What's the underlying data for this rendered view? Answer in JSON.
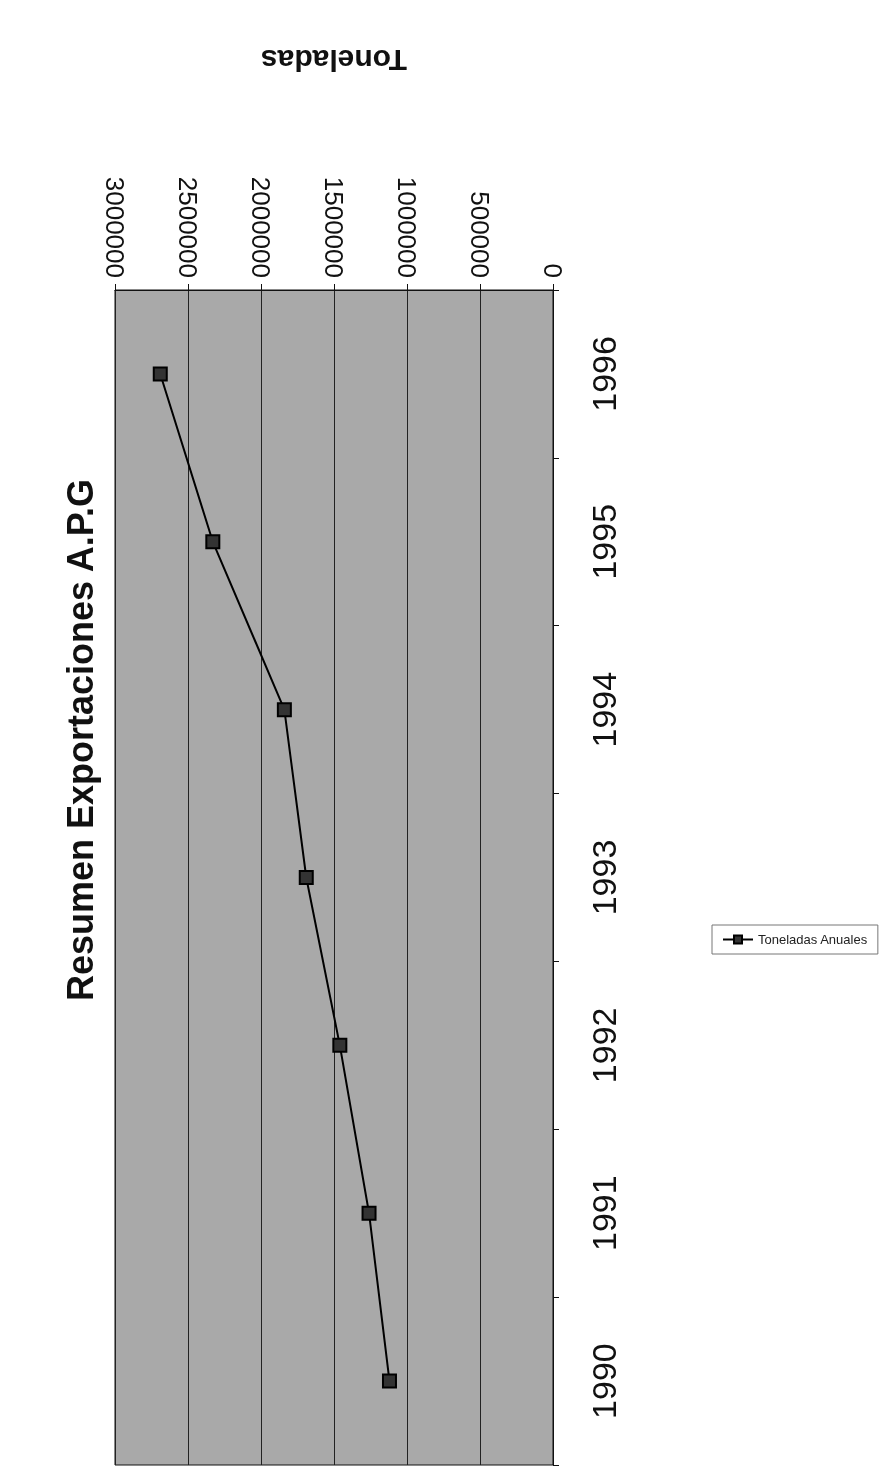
{
  "chart_data": {
    "type": "line",
    "title": "Resumen Exportaciones A.P.G",
    "xlabel": "Toneladas",
    "orientation": "horizontal",
    "categories": [
      "1996",
      "1995",
      "1994",
      "1993",
      "1992",
      "1991",
      "1990"
    ],
    "series": [
      {
        "name": "Toneladas Anuales",
        "color": "#000000",
        "values": [
          2690000,
          2330000,
          1840000,
          1690000,
          1460000,
          1260000,
          1120000
        ]
      }
    ],
    "xlim": [
      3000000,
      0
    ],
    "xticks": [
      3000000,
      2500000,
      2000000,
      1500000,
      1000000,
      500000,
      0
    ],
    "grid": "x",
    "legend": "right",
    "marker": "square"
  }
}
